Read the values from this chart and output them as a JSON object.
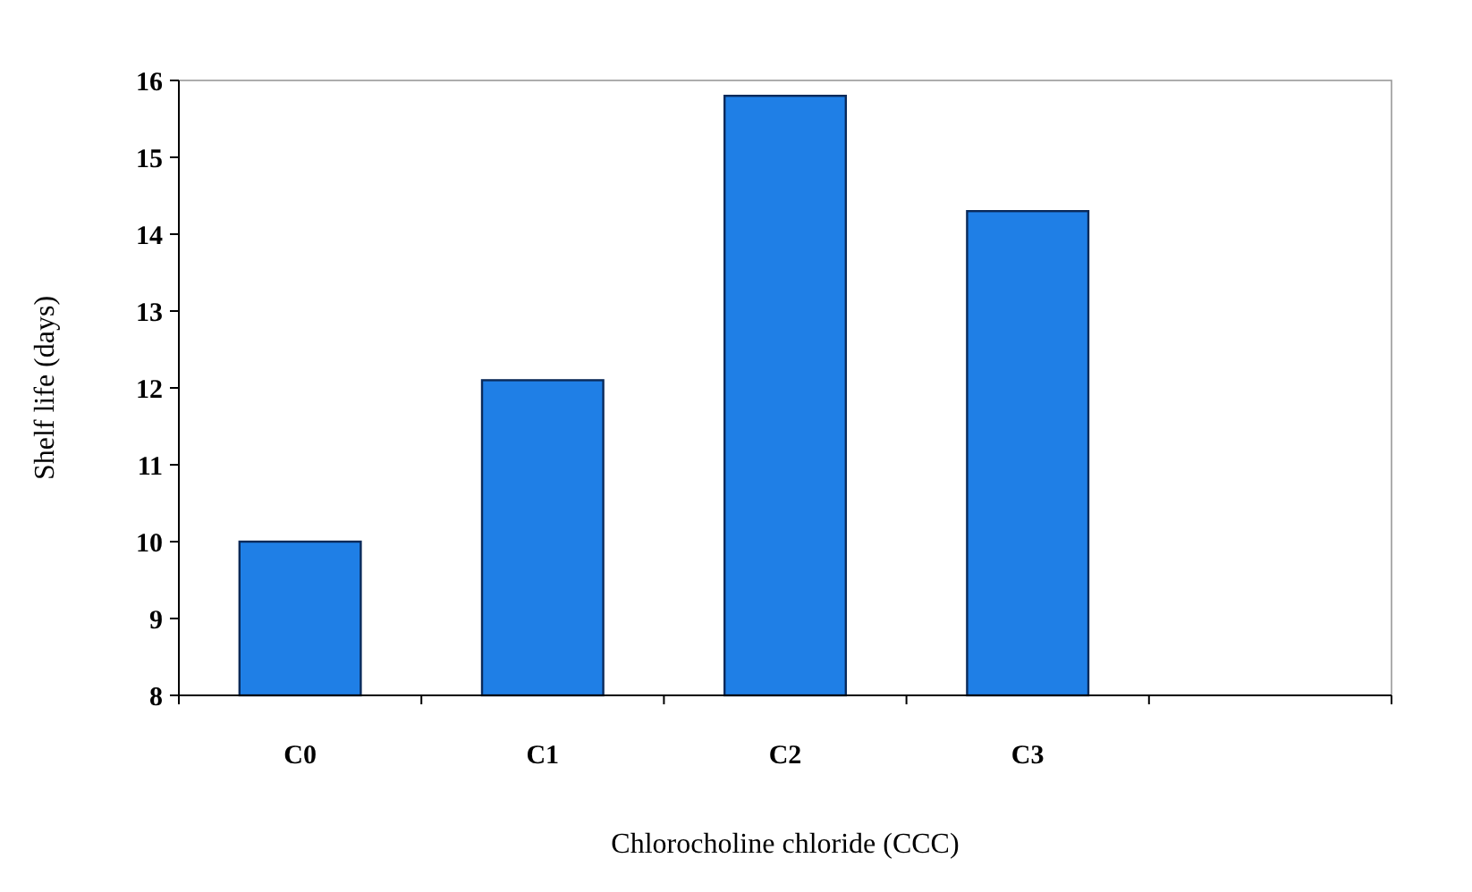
{
  "chart_data": {
    "type": "bar",
    "xlabel": "Chlorocholine chloride (CCC)",
    "ylabel": "Shelf life (days)",
    "categories": [
      "C0",
      "C1",
      "C2",
      "C3",
      null
    ],
    "values": [
      10,
      12.1,
      15.8,
      14.3,
      null
    ],
    "color": "#1f7fe6",
    "ylim": [
      8,
      16
    ],
    "yticks": [
      8,
      9,
      10,
      11,
      12,
      13,
      14,
      15,
      16
    ],
    "grid": false
  }
}
